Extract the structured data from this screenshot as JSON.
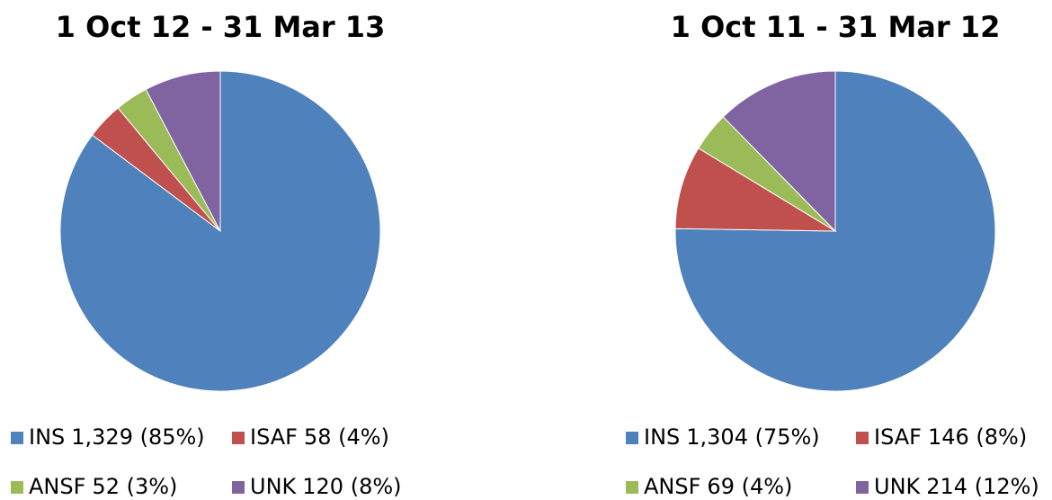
{
  "chart_data": [
    {
      "type": "pie",
      "title": "1 Oct 12 - 31 Mar 13",
      "categories": [
        "INS",
        "ISAF",
        "ANSF",
        "UNK"
      ],
      "values": [
        1329,
        58,
        52,
        120
      ],
      "value_labels": [
        "1,329 (85%)",
        "58 (4%)",
        "52 (3%)",
        "120 (8%)"
      ],
      "colors": [
        "#4f81bd",
        "#c0504d",
        "#9bbb59",
        "#8064a2"
      ]
    },
    {
      "type": "pie",
      "title": "1 Oct 11 - 31 Mar 12",
      "categories": [
        "INS",
        "ISAF",
        "ANSF",
        "UNK"
      ],
      "values": [
        1304,
        146,
        69,
        214
      ],
      "value_labels": [
        "1,304 (75%)",
        "146 (8%)",
        "69 (4%)",
        "214 (12%)"
      ],
      "colors": [
        "#4f81bd",
        "#c0504d",
        "#9bbb59",
        "#8064a2"
      ]
    }
  ]
}
